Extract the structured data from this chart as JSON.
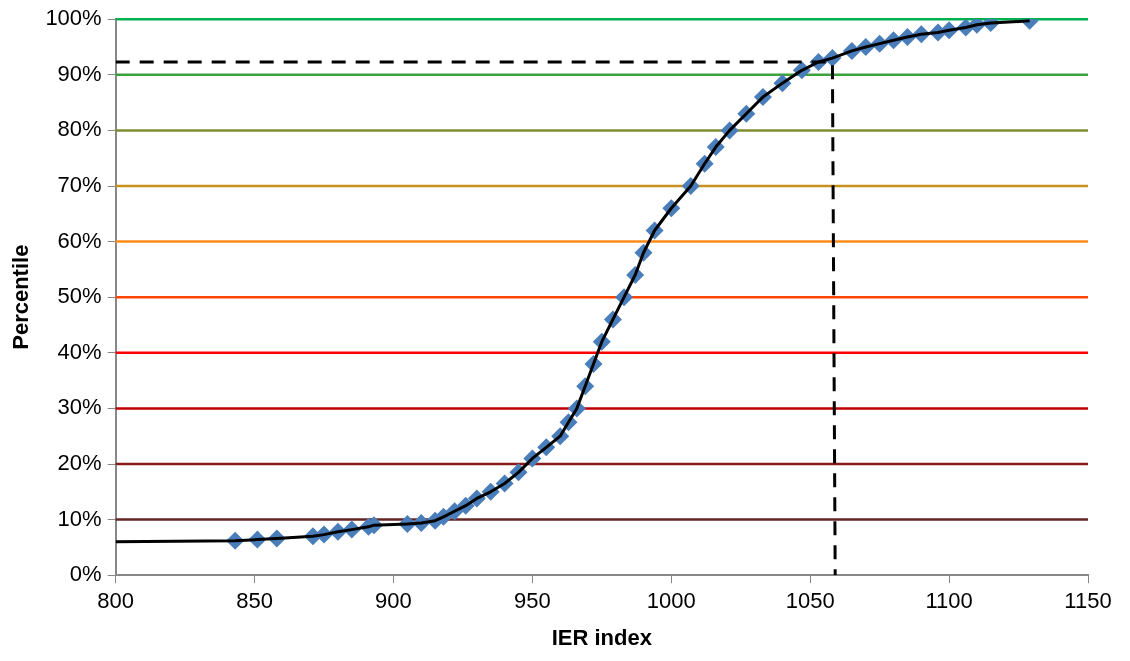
{
  "chart_data": {
    "type": "scatter",
    "xlabel": "IER index",
    "ylabel": "Percentile",
    "xlim": [
      800,
      1150
    ],
    "xticks": [
      800,
      850,
      900,
      950,
      1000,
      1050,
      1100,
      1150
    ],
    "ylim": [
      0,
      100
    ],
    "yticks": [
      {
        "value": 0,
        "label": "0%"
      },
      {
        "value": 10,
        "label": "10%"
      },
      {
        "value": 20,
        "label": "20%"
      },
      {
        "value": 30,
        "label": "30%"
      },
      {
        "value": 40,
        "label": "40%"
      },
      {
        "value": 50,
        "label": "50%"
      },
      {
        "value": 60,
        "label": "60%"
      },
      {
        "value": 70,
        "label": "70%"
      },
      {
        "value": 80,
        "label": "80%"
      },
      {
        "value": 90,
        "label": "90%"
      },
      {
        "value": 100,
        "label": "100%"
      }
    ],
    "grid": false,
    "legend": false,
    "ref_lines": [
      {
        "axis": "y",
        "value": 10,
        "color": "#632523"
      },
      {
        "axis": "y",
        "value": 20,
        "color": "#8b1a1a"
      },
      {
        "axis": "y",
        "value": 30,
        "color": "#c00000"
      },
      {
        "axis": "y",
        "value": 40,
        "color": "#ff0000"
      },
      {
        "axis": "y",
        "value": 50,
        "color": "#ff4500"
      },
      {
        "axis": "y",
        "value": 60,
        "color": "#ff8c1a"
      },
      {
        "axis": "y",
        "value": 70,
        "color": "#c8901e"
      },
      {
        "axis": "y",
        "value": 80,
        "color": "#7f8c30"
      },
      {
        "axis": "y",
        "value": 90,
        "color": "#3ca03c"
      },
      {
        "axis": "y",
        "value": 100,
        "color": "#00b050"
      }
    ],
    "series": [
      {
        "type": "line",
        "color": "#000000",
        "marker": "none",
        "line_style": "solid",
        "x": [
          800,
          843,
          851,
          858,
          871,
          875,
          880,
          885,
          891,
          893,
          905,
          910,
          915,
          918,
          922,
          926,
          930,
          935,
          940,
          945,
          950,
          955,
          960,
          963,
          966,
          969,
          972,
          975,
          979,
          983,
          987,
          990,
          994,
          1000,
          1007,
          1012,
          1016,
          1021,
          1027,
          1033,
          1040,
          1047,
          1053,
          1058,
          1065,
          1070,
          1075,
          1080,
          1085,
          1090,
          1096,
          1100,
          1106,
          1110,
          1115,
          1129
        ],
        "values": [
          6,
          6.2,
          6.4,
          6.6,
          7,
          7.3,
          7.8,
          8.2,
          8.7,
          9,
          9.2,
          9.4,
          9.8,
          10.5,
          11.5,
          12.5,
          13.8,
          15,
          16.5,
          18.5,
          21,
          23,
          25,
          27.5,
          30,
          34,
          38,
          42,
          46,
          50,
          54,
          58,
          62,
          66,
          70,
          74,
          77,
          80,
          83,
          86,
          88.5,
          90.8,
          92.3,
          93,
          94.3,
          95,
          95.6,
          96.2,
          96.8,
          97.3,
          97.6,
          98,
          98.5,
          99,
          99.3,
          99.7
        ]
      },
      {
        "color": "#4a7ebb",
        "marker": "diamond",
        "x": [
          843,
          851,
          858,
          871,
          875,
          880,
          885,
          891,
          893,
          905,
          910,
          915,
          918,
          922,
          926,
          930,
          935,
          940,
          945,
          950,
          955,
          960,
          963,
          966,
          969,
          972,
          975,
          979,
          983,
          987,
          990,
          994,
          1000,
          1007,
          1012,
          1016,
          1021,
          1027,
          1033,
          1040,
          1047,
          1053,
          1058,
          1065,
          1070,
          1075,
          1080,
          1085,
          1090,
          1096,
          1100,
          1106,
          1110,
          1115,
          1129
        ],
        "values": [
          6.2,
          6.4,
          6.6,
          7,
          7.3,
          7.8,
          8.2,
          8.7,
          9,
          9.2,
          9.4,
          9.8,
          10.5,
          11.5,
          12.5,
          13.8,
          15,
          16.5,
          18.5,
          21,
          23,
          25,
          27.5,
          30,
          34,
          38,
          42,
          46,
          50,
          54,
          58,
          62,
          66,
          70,
          74,
          77,
          80,
          83,
          86,
          88.5,
          90.8,
          92.3,
          93,
          94.3,
          95,
          95.6,
          96.2,
          96.8,
          97.3,
          97.6,
          98,
          98.5,
          99,
          99.3,
          99.7
        ]
      },
      {
        "type": "line",
        "color": "#000000",
        "marker": "none",
        "line_style": "dashed",
        "x": [
          800,
          1058,
          1059
        ],
        "values": [
          92.3,
          92.3,
          0
        ]
      }
    ]
  }
}
